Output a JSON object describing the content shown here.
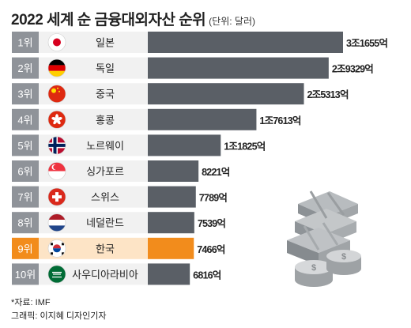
{
  "header": {
    "title": "2022 세계 순 금융대외자산 순위",
    "unit": "(단위: 달러)"
  },
  "footer": {
    "source": "*자료: IMF",
    "credit": "그래픽: 이지혜 디자인기자"
  },
  "chart_data": {
    "type": "bar",
    "orientation": "horizontal",
    "title": "2022 세계 순 금융대외자산 순위",
    "unit": "(단위: 달러)",
    "unit_value": "억 달러",
    "categories": [
      "일본",
      "독일",
      "중국",
      "홍콩",
      "노르웨이",
      "싱가포르",
      "스위스",
      "네덜란드",
      "한국",
      "사우디아라비아"
    ],
    "ranks": [
      "1위",
      "2위",
      "3위",
      "4위",
      "5위",
      "6위",
      "7위",
      "8위",
      "9위",
      "10위"
    ],
    "values": [
      31655,
      29329,
      25313,
      17613,
      11825,
      8221,
      7789,
      7539,
      7466,
      6816
    ],
    "value_labels": [
      "3조1655억",
      "2조9329억",
      "2조5313억",
      "1조7613억",
      "1조1825억",
      "8221억",
      "7789억",
      "7539억",
      "7466억",
      "6816억"
    ],
    "flags": [
      "japan-flag",
      "germany-flag",
      "china-flag",
      "hongkong-flag",
      "norway-flag",
      "singapore-flag",
      "switzerland-flag",
      "netherlands-flag",
      "korea-flag",
      "saudi-flag"
    ],
    "highlight_index": 8,
    "colors": {
      "bar": "#5a5f66",
      "highlight": "#f28c1c",
      "rank_bg": "#8f9399",
      "name_bg": "#f1f1f1",
      "highlight_name_bg": "#fde4c6"
    }
  }
}
